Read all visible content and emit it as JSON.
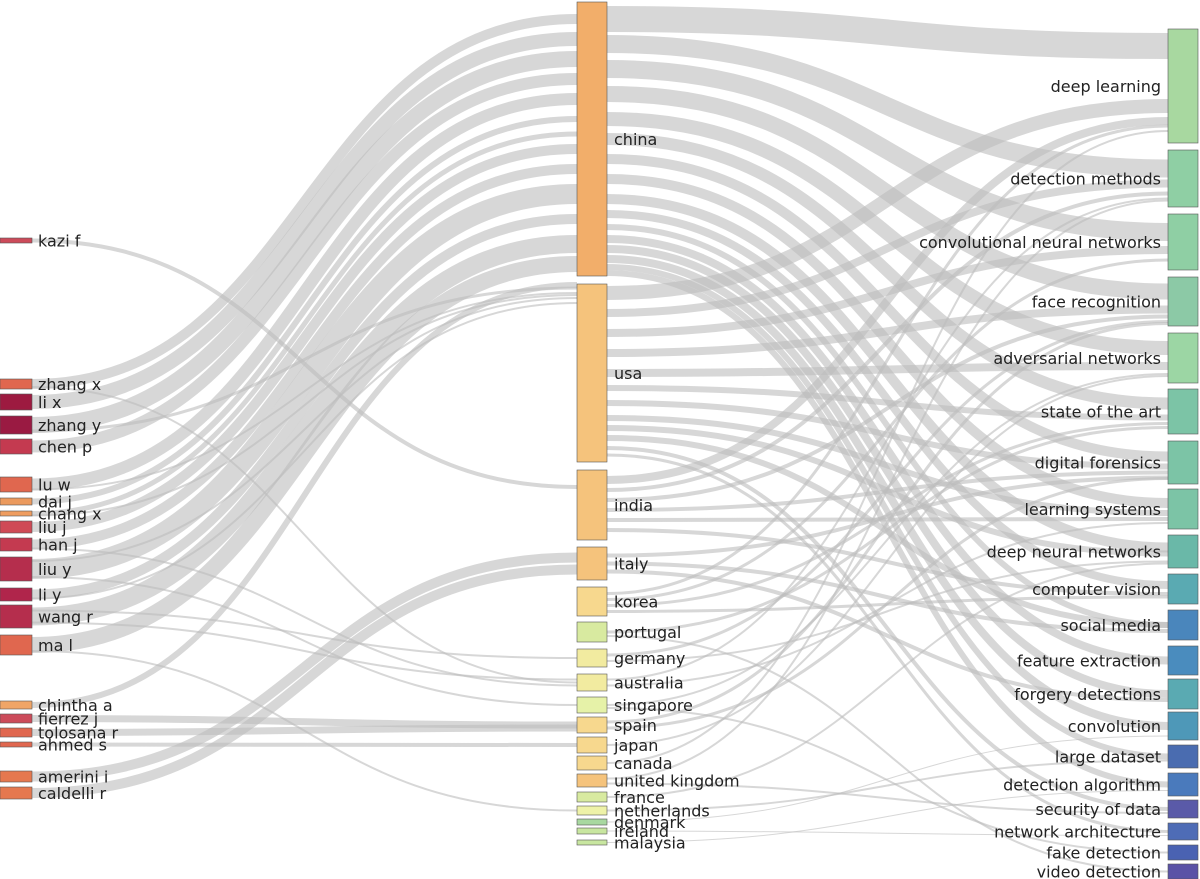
{
  "diagram": {
    "type": "three-field sankey",
    "columns": {
      "authors": [
        {
          "id": "kazi f",
          "label": "kazi f",
          "color": "#cc4b5a"
        },
        {
          "id": "zhang x",
          "label": "zhang x",
          "color": "#e0674f"
        },
        {
          "id": "li x",
          "label": "li x",
          "color": "#9d1a40"
        },
        {
          "id": "zhang y",
          "label": "zhang y",
          "color": "#9a1a42"
        },
        {
          "id": "chen p",
          "label": "chen p",
          "color": "#c43a50"
        },
        {
          "id": "lu w",
          "label": "lu w",
          "color": "#e0674f"
        },
        {
          "id": "dai j",
          "label": "dai j",
          "color": "#eb9a5e"
        },
        {
          "id": "chang x",
          "label": "chang x",
          "color": "#ef9d60"
        },
        {
          "id": "liu j",
          "label": "liu j",
          "color": "#cf4a56"
        },
        {
          "id": "han j",
          "label": "han j",
          "color": "#c43a50"
        },
        {
          "id": "liu y",
          "label": "liu y",
          "color": "#b52e4d"
        },
        {
          "id": "li y",
          "label": "li y",
          "color": "#b0254b"
        },
        {
          "id": "wang r",
          "label": "wang r",
          "color": "#b52e4d"
        },
        {
          "id": "ma l",
          "label": "ma l",
          "color": "#e0674f"
        },
        {
          "id": "chintha a",
          "label": "chintha a",
          "color": "#f0a567"
        },
        {
          "id": "fierrez j",
          "label": "fierrez j",
          "color": "#cc4b5a"
        },
        {
          "id": "tolosana r",
          "label": "tolosana r",
          "color": "#e0674f"
        },
        {
          "id": "ahmed s",
          "label": "ahmed s",
          "color": "#e0674f"
        },
        {
          "id": "amerini i",
          "label": "amerini i",
          "color": "#e5784f"
        },
        {
          "id": "caldelli r",
          "label": "caldelli r",
          "color": "#e5784f"
        }
      ],
      "countries": [
        {
          "id": "china",
          "label": "china",
          "color": "#f2ae6a"
        },
        {
          "id": "usa",
          "label": "usa",
          "color": "#f5c37c"
        },
        {
          "id": "india",
          "label": "india",
          "color": "#f5c37c"
        },
        {
          "id": "italy",
          "label": "italy",
          "color": "#f5c37c"
        },
        {
          "id": "korea",
          "label": "korea",
          "color": "#f7d88e"
        },
        {
          "id": "portugal",
          "label": "portugal",
          "color": "#d8eaa0"
        },
        {
          "id": "germany",
          "label": "germany",
          "color": "#f2eba0"
        },
        {
          "id": "australia",
          "label": "australia",
          "color": "#f2eba0"
        },
        {
          "id": "singapore",
          "label": "singapore",
          "color": "#e6f2a8"
        },
        {
          "id": "spain",
          "label": "spain",
          "color": "#f7d88e"
        },
        {
          "id": "japan",
          "label": "japan",
          "color": "#f7d88e"
        },
        {
          "id": "canada",
          "label": "canada",
          "color": "#f7d88e"
        },
        {
          "id": "united kingdom",
          "label": "united kingdom",
          "color": "#f5c37c"
        },
        {
          "id": "france",
          "label": "france",
          "color": "#d8eaa0"
        },
        {
          "id": "netherlands",
          "label": "netherlands",
          "color": "#eef2a8"
        },
        {
          "id": "denmark",
          "label": "denmark",
          "color": "#a8d8a0"
        },
        {
          "id": "ireland",
          "label": "ireland",
          "color": "#c8e6a0"
        },
        {
          "id": "malaysia",
          "label": "malaysia",
          "color": "#c8e6a0"
        }
      ],
      "keywords": [
        {
          "id": "deep learning",
          "label": "deep learning",
          "color": "#a8d8a0"
        },
        {
          "id": "detection methods",
          "label": "detection methods",
          "color": "#8fcfa4"
        },
        {
          "id": "convolutional neural networks",
          "label": "convolutional neural networks",
          "color": "#8fcfa4"
        },
        {
          "id": "face recognition",
          "label": "face recognition",
          "color": "#8cc9a6"
        },
        {
          "id": "adversarial networks",
          "label": "adversarial networks",
          "color": "#9cd6a4"
        },
        {
          "id": "state of the art",
          "label": "state of the art",
          "color": "#7cc4a6"
        },
        {
          "id": "digital forensics",
          "label": "digital forensics",
          "color": "#7cc4a6"
        },
        {
          "id": "learning systems",
          "label": "learning systems",
          "color": "#7cc4a6"
        },
        {
          "id": "deep neural networks",
          "label": "deep neural networks",
          "color": "#6ab8a8"
        },
        {
          "id": "computer vision",
          "label": "computer vision",
          "color": "#5aaab2"
        },
        {
          "id": "social media",
          "label": "social media",
          "color": "#4a86bc"
        },
        {
          "id": "feature extraction",
          "label": "feature extraction",
          "color": "#4a8cbe"
        },
        {
          "id": "forgery detections",
          "label": "forgery detections",
          "color": "#5aaab2"
        },
        {
          "id": "convolution",
          "label": "convolution",
          "color": "#4e98b8"
        },
        {
          "id": "large dataset",
          "label": "large dataset",
          "color": "#4a6cb0"
        },
        {
          "id": "detection algorithm",
          "label": "detection algorithm",
          "color": "#4a7abc"
        },
        {
          "id": "security of data",
          "label": "security of data",
          "color": "#5a5aa8"
        },
        {
          "id": "network architecture",
          "label": "network architecture",
          "color": "#4e6cb6"
        },
        {
          "id": "fake detection",
          "label": "fake detection",
          "color": "#4a62b2"
        },
        {
          "id": "video detection",
          "label": "video detection",
          "color": "#5a52a6"
        }
      ]
    }
  }
}
